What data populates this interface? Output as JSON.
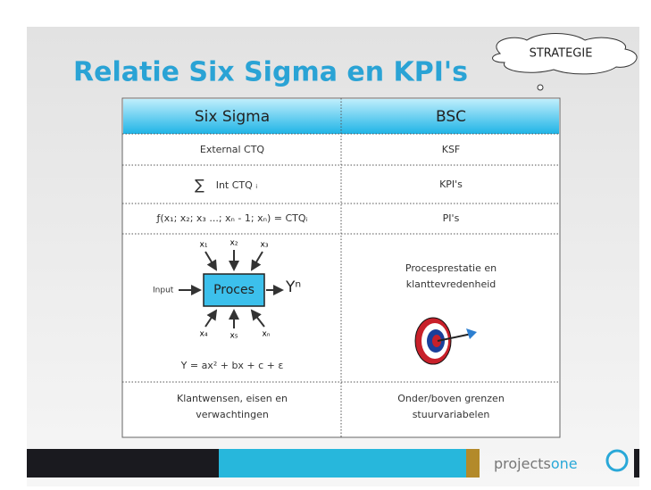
{
  "title": "Relatie Six Sigma en KPI's",
  "cloud": "STRATEGIE",
  "table": {
    "header": [
      "Six Sigma",
      "BSC"
    ],
    "rows": [
      [
        "External CTQ",
        "KSF"
      ],
      [
        "Int CTQ ᵢ",
        "KPI's"
      ],
      [
        "ƒ(x₁; x₂; x₃ ...; xₙ - 1; xₙ) = CTQᵢ",
        "PI's"
      ],
      [
        "Y = ax² + bx + c + ε",
        "Procesprestatie en klanttevredenheid"
      ],
      [
        "Klantwensen, eisen en verwachtingen",
        "Onder/boven grenzen stuurvariabelen"
      ]
    ]
  },
  "diagram": {
    "input": "Input",
    "process": "Proces",
    "output": "Yⁿ",
    "inputs": [
      "x₁",
      "x₂",
      "x₃",
      "x₄",
      "x₅",
      "xₙ"
    ]
  },
  "logo": {
    "part1": "projects",
    "part2": "one"
  }
}
